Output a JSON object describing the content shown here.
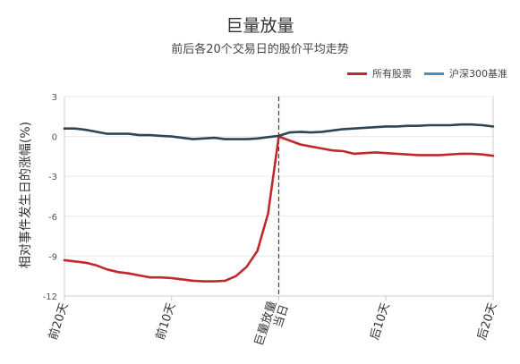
{
  "title": "巨量放量",
  "subtitle": "前后各20个交易日的股价平均走势",
  "colors": {
    "series_all": "#c0292c",
    "series_hs300": "#2f4555",
    "legend_hs300": "#4a90b8",
    "event_line": "#8b1a1a",
    "grid": "#e8e8e8",
    "axis": "#cccccc"
  },
  "chart_data": {
    "type": "line",
    "title": "巨量放量",
    "subtitle": "前后各20个交易日的股价平均走势",
    "xlabel": "",
    "ylabel": "相对事件发生日的涨幅(%)",
    "ylim": [
      -12,
      3
    ],
    "yticks": [
      "3",
      "0",
      "-3",
      "-6",
      "-9",
      "-12"
    ],
    "ytick_values": [
      3,
      0,
      -3,
      -6,
      -9,
      -12
    ],
    "grid": true,
    "legend_position": "top-right",
    "x": [
      -20,
      -19,
      -18,
      -17,
      -16,
      -15,
      -14,
      -13,
      -12,
      -11,
      -10,
      -9,
      -8,
      -7,
      -6,
      -5,
      -4,
      -3,
      -2,
      -1,
      0,
      1,
      2,
      3,
      4,
      5,
      6,
      7,
      8,
      9,
      10,
      11,
      12,
      13,
      14,
      15,
      16,
      17,
      18,
      19,
      20
    ],
    "xtick_labels": [
      "前20天",
      "前10天",
      "巨量放量\n当日",
      "后10天",
      "后20天"
    ],
    "xtick_positions": [
      -20,
      -10,
      0,
      10,
      20
    ],
    "event_x": 0,
    "series": [
      {
        "name": "所有股票",
        "color": "#c0292c",
        "values": [
          -9.3,
          -9.4,
          -9.5,
          -9.7,
          -10.0,
          -10.2,
          -10.3,
          -10.45,
          -10.6,
          -10.6,
          -10.65,
          -10.75,
          -10.85,
          -10.9,
          -10.9,
          -10.85,
          -10.5,
          -9.8,
          -8.6,
          -5.8,
          0.0,
          -0.3,
          -0.6,
          -0.75,
          -0.9,
          -1.05,
          -1.1,
          -1.3,
          -1.25,
          -1.2,
          -1.25,
          -1.3,
          -1.35,
          -1.4,
          -1.4,
          -1.4,
          -1.35,
          -1.3,
          -1.3,
          -1.35,
          -1.45
        ]
      },
      {
        "name": "沪深300基准",
        "color": "#2f4555",
        "values": [
          0.6,
          0.6,
          0.5,
          0.35,
          0.2,
          0.2,
          0.2,
          0.1,
          0.1,
          0.05,
          0.0,
          -0.1,
          -0.2,
          -0.15,
          -0.1,
          -0.2,
          -0.2,
          -0.2,
          -0.15,
          -0.05,
          0.05,
          0.3,
          0.35,
          0.3,
          0.35,
          0.45,
          0.55,
          0.6,
          0.65,
          0.7,
          0.75,
          0.75,
          0.8,
          0.8,
          0.85,
          0.85,
          0.85,
          0.9,
          0.9,
          0.85,
          0.75
        ]
      }
    ]
  }
}
